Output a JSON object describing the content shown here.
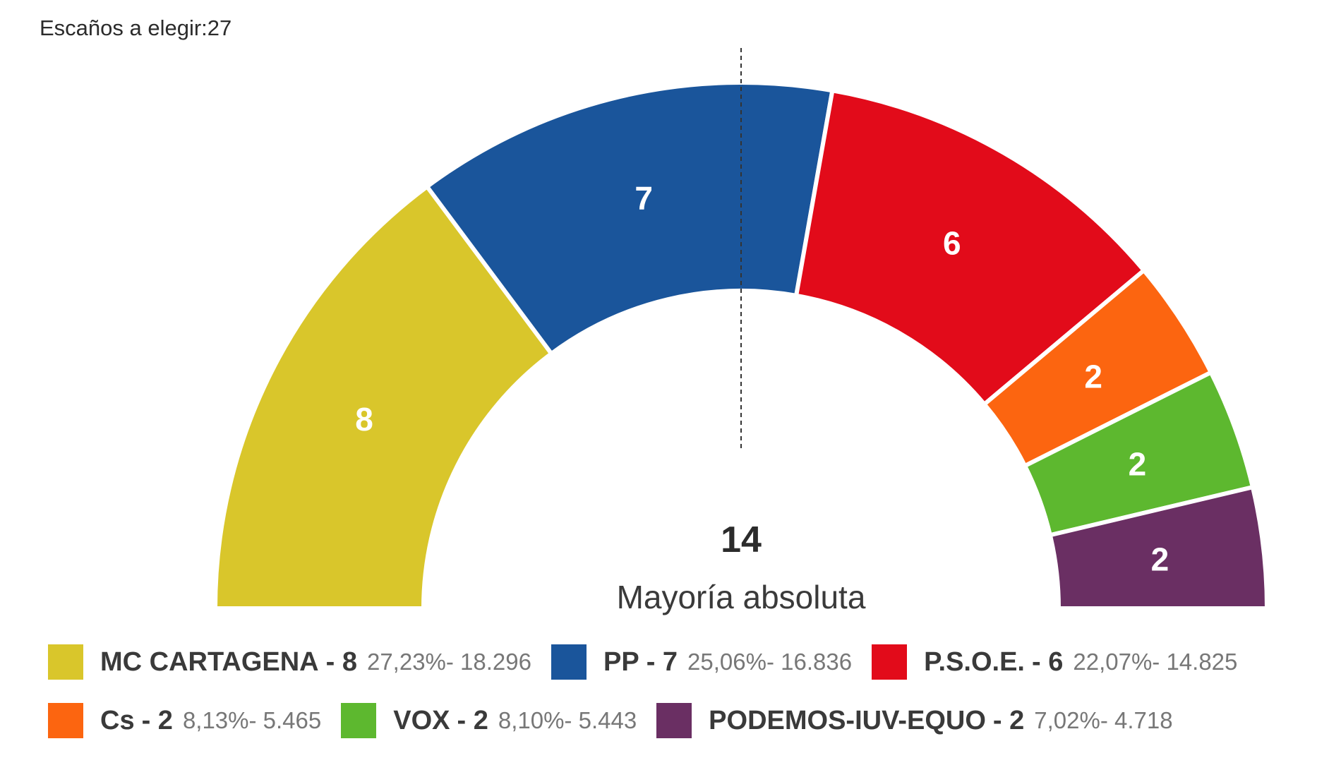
{
  "header": {
    "seats_label": "Escaños a elegir:27"
  },
  "chart_data": {
    "type": "pie",
    "subtype": "semicircle-parliament",
    "total_seats": 27,
    "majority": {
      "value": "14",
      "label": "Mayoría absoluta"
    },
    "series": [
      {
        "name": "MC CARTAGENA",
        "seats": 8,
        "seats_label": "- 8",
        "stats": "27,23%- 18.296",
        "color": "#d9c62b"
      },
      {
        "name": "PP",
        "seats": 7,
        "seats_label": "- 7",
        "stats": "25,06%- 16.836",
        "color": "#1a559b"
      },
      {
        "name": "P.S.O.E.",
        "seats": 6,
        "seats_label": "- 6",
        "stats": "22,07%- 14.825",
        "color": "#e20b1a"
      },
      {
        "name": "Cs",
        "seats": 2,
        "seats_label": "- 2",
        "stats": "8,13%- 5.465",
        "color": "#fc6510"
      },
      {
        "name": "VOX",
        "seats": 2,
        "seats_label": "- 2",
        "stats": "8,10%- 5.443",
        "color": "#5db82f"
      },
      {
        "name": "PODEMOS-IUV-EQUO",
        "seats": 2,
        "seats_label": "- 2",
        "stats": "7,02%- 4.718",
        "color": "#6a2f63"
      }
    ]
  }
}
